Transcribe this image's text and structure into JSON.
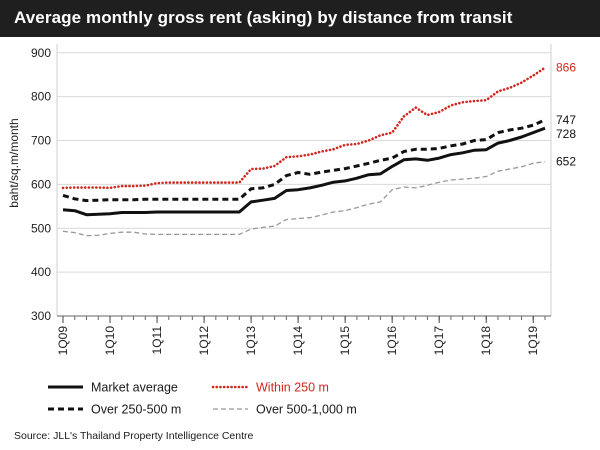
{
  "title": "Average monthly gross rent (asking) by distance from transit",
  "source": "Source: JLL's Thailand Property Intelligence Centre",
  "chart_data": {
    "type": "line",
    "title": "Average monthly gross rent (asking) by distance from transit",
    "xlabel": "",
    "ylabel": "baht/sq.m/month",
    "ylim": [
      300,
      920
    ],
    "yticks": [
      300,
      400,
      500,
      600,
      700,
      800,
      900
    ],
    "x": [
      2009.0,
      2009.25,
      2009.5,
      2009.75,
      2010.0,
      2010.25,
      2010.5,
      2010.75,
      2011.0,
      2011.25,
      2011.5,
      2011.75,
      2012.0,
      2012.25,
      2012.5,
      2012.75,
      2013.0,
      2013.25,
      2013.5,
      2013.75,
      2014.0,
      2014.25,
      2014.5,
      2014.75,
      2015.0,
      2015.25,
      2015.5,
      2015.75,
      2016.0,
      2016.25,
      2016.5,
      2016.75,
      2017.0,
      2017.25,
      2017.5,
      2017.75,
      2018.0,
      2018.25,
      2018.5,
      2018.75,
      2019.0,
      2019.25
    ],
    "xlim": [
      2009.0,
      2019.25
    ],
    "xticks": [
      {
        "x": 2009.0,
        "label": "1Q09"
      },
      {
        "x": 2010.0,
        "label": "1Q10"
      },
      {
        "x": 2011.0,
        "label": "1Q11"
      },
      {
        "x": 2012.0,
        "label": "1Q12"
      },
      {
        "x": 2013.0,
        "label": "1Q13"
      },
      {
        "x": 2014.0,
        "label": "1Q14"
      },
      {
        "x": 2015.0,
        "label": "1Q15"
      },
      {
        "x": 2016.0,
        "label": "1Q16"
      },
      {
        "x": 2017.0,
        "label": "1Q17"
      },
      {
        "x": 2018.0,
        "label": "1Q18"
      },
      {
        "x": 2019.0,
        "label": "1Q19"
      }
    ],
    "series": [
      {
        "name": "Market average",
        "color": "#111111",
        "style": "solid",
        "values": [
          542,
          540,
          531,
          532,
          533,
          536,
          536,
          536,
          537,
          537,
          537,
          537,
          537,
          537,
          537,
          537,
          560,
          564,
          568,
          586,
          588,
          592,
          598,
          605,
          608,
          614,
          622,
          624,
          641,
          656,
          658,
          655,
          660,
          668,
          672,
          678,
          679,
          694,
          700,
          708,
          718,
          728
        ],
        "end_label": "728"
      },
      {
        "name": "Over 250-500 m",
        "color": "#111111",
        "style": "dashed",
        "values": [
          575,
          567,
          563,
          564,
          565,
          565,
          565,
          566,
          566,
          566,
          566,
          566,
          566,
          566,
          566,
          566,
          590,
          592,
          600,
          620,
          627,
          623,
          628,
          632,
          636,
          642,
          648,
          655,
          660,
          675,
          680,
          680,
          682,
          688,
          692,
          700,
          702,
          718,
          724,
          728,
          735,
          747
        ],
        "end_label": "747"
      },
      {
        "name": "Within 250 m",
        "color": "#d0281e",
        "style": "dotted",
        "values": [
          592,
          593,
          593,
          593,
          592,
          596,
          596,
          597,
          603,
          604,
          604,
          604,
          604,
          604,
          604,
          604,
          635,
          636,
          642,
          662,
          664,
          668,
          675,
          680,
          690,
          692,
          700,
          712,
          718,
          755,
          775,
          758,
          765,
          780,
          787,
          790,
          792,
          812,
          820,
          832,
          848,
          866
        ],
        "end_label": "866"
      },
      {
        "name": "Over 500-1,000 m",
        "color": "#999999",
        "style": "dashed-light",
        "values": [
          493,
          490,
          483,
          484,
          488,
          491,
          491,
          487,
          486,
          486,
          486,
          486,
          486,
          486,
          486,
          486,
          498,
          502,
          505,
          520,
          522,
          524,
          530,
          537,
          540,
          547,
          555,
          560,
          588,
          594,
          592,
          598,
          605,
          610,
          612,
          614,
          618,
          630,
          635,
          640,
          648,
          652
        ],
        "end_label": "652"
      }
    ],
    "legend_position": "bottom",
    "grid": "horizontal"
  }
}
